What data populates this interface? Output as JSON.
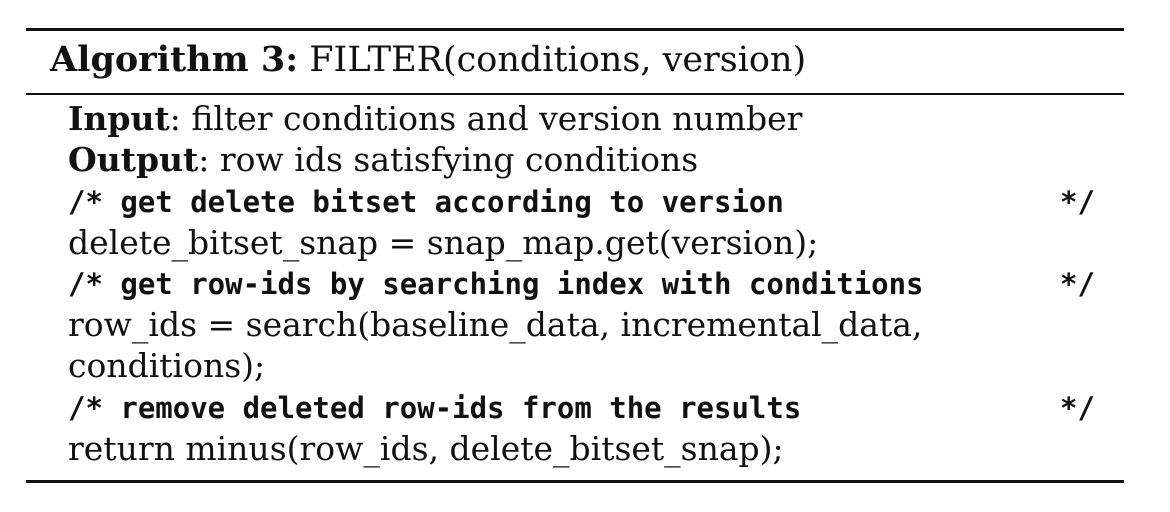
{
  "algorithm": {
    "label": "Algorithm 3:",
    "signature": "FILTER(conditions, version)"
  },
  "input": {
    "label": "Input",
    "text": ": filter conditions and version number"
  },
  "output": {
    "label": "Output",
    "text": ": row ids satisfying conditions"
  },
  "steps": [
    {
      "comment": "/* get delete bitset according to version",
      "comment_end": "*/"
    },
    {
      "code": "delete_bitset_snap = snap_map.get(version);"
    },
    {
      "comment": "/* get row-ids by searching index with conditions",
      "comment_end": "*/"
    },
    {
      "code": "row_ids = search(baseline_data, incremental_data,"
    },
    {
      "code": "conditions);"
    },
    {
      "comment": "/* remove deleted row-ids from the results",
      "comment_end": "*/"
    },
    {
      "code": "return minus(row_ids, delete_bitset_snap);"
    }
  ]
}
